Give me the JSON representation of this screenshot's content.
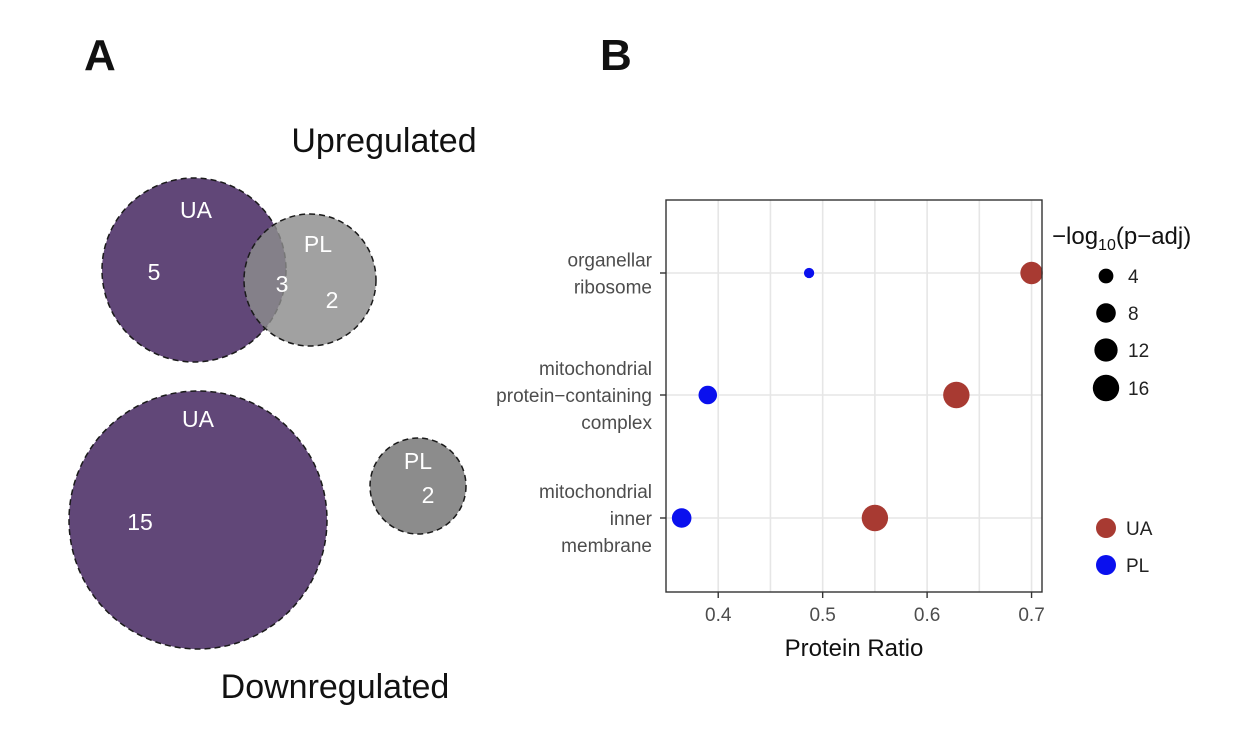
{
  "panels": {
    "a_letter": "A",
    "b_letter": "B"
  },
  "venn": {
    "upregulated": {
      "title": "Upregulated",
      "set_a": {
        "name": "UA",
        "only": "5",
        "color": "#614778"
      },
      "set_b": {
        "name": "PL",
        "only": "2",
        "color": "#8c8c8c"
      },
      "overlap": "3"
    },
    "downregulated": {
      "title": "Downregulated",
      "set_a": {
        "name": "UA",
        "only": "15",
        "color": "#614778"
      },
      "set_b": {
        "name": "PL",
        "only": "2",
        "color": "#8c8c8c"
      }
    }
  },
  "chart_data": {
    "type": "scatter",
    "xlabel": "Protein Ratio",
    "ylabel": "",
    "xlim": [
      0.35,
      0.71
    ],
    "xticks": [
      0.4,
      0.5,
      0.6,
      0.7
    ],
    "xtick_labels": [
      "0.4",
      "0.5",
      "0.6",
      "0.7"
    ],
    "categories": [
      {
        "id": "organellar-ribosome",
        "lines": [
          "organellar",
          "ribosome"
        ]
      },
      {
        "id": "mitochondrial-protein-containing-complex",
        "lines": [
          "mitochondrial",
          "protein−containing",
          "complex"
        ]
      },
      {
        "id": "mitochondrial-inner-membrane",
        "lines": [
          "mitochondrial",
          "inner",
          "membrane"
        ]
      }
    ],
    "series": [
      {
        "name": "UA",
        "color": "#a83a32",
        "points": [
          {
            "category": "organellar-ribosome",
            "x": 0.7,
            "neglog10_padj": 11
          },
          {
            "category": "mitochondrial-protein-containing-complex",
            "x": 0.628,
            "neglog10_padj": 16
          },
          {
            "category": "mitochondrial-inner-membrane",
            "x": 0.55,
            "neglog10_padj": 16
          }
        ]
      },
      {
        "name": "PL",
        "color": "#0a10ee",
        "points": [
          {
            "category": "organellar-ribosome",
            "x": 0.487,
            "neglog10_padj": 1.5
          },
          {
            "category": "mitochondrial-protein-containing-complex",
            "x": 0.39,
            "neglog10_padj": 7
          },
          {
            "category": "mitochondrial-inner-membrane",
            "x": 0.365,
            "neglog10_padj": 8
          }
        ]
      }
    ],
    "size_legend": {
      "title_prefix": "−log",
      "title_sub": "10",
      "title_suffix": "(p−adj)",
      "values": [
        4,
        8,
        12,
        16
      ],
      "labels": [
        "4",
        "8",
        "12",
        "16"
      ]
    },
    "color_legend_placement": "right",
    "grid": true
  }
}
